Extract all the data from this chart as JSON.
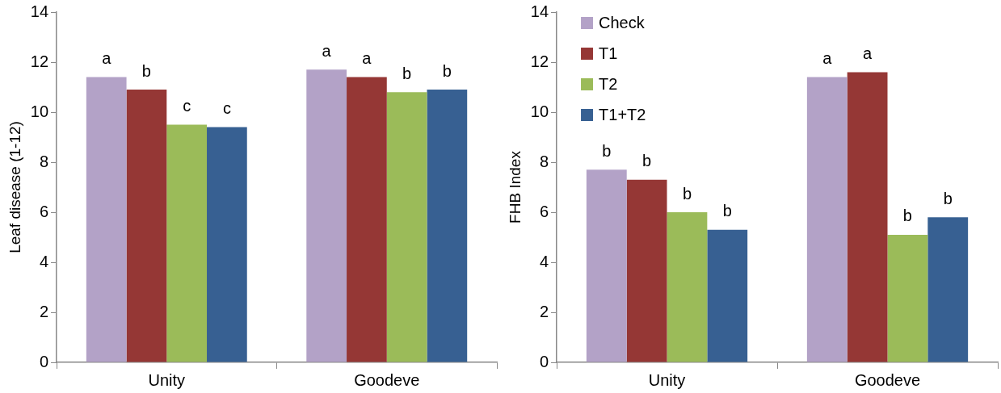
{
  "chart_data": [
    {
      "type": "bar",
      "ylabel": "Leaf disease (1-12)",
      "categories": [
        "Unity",
        "Goodeve"
      ],
      "ylim": [
        0,
        14
      ],
      "yticks": [
        0,
        2,
        4,
        6,
        8,
        10,
        12,
        14
      ],
      "grid": false,
      "legend": false,
      "series": [
        {
          "color": "#b3a2c7",
          "values": [
            11.4,
            11.7
          ],
          "value_labels": [
            "a",
            "a"
          ]
        },
        {
          "color": "#953735",
          "values": [
            10.9,
            11.4
          ],
          "value_labels": [
            "b",
            "a"
          ]
        },
        {
          "color": "#9bbb59",
          "values": [
            9.5,
            10.8
          ],
          "value_labels": [
            "c",
            "b"
          ]
        },
        {
          "color": "#376092",
          "values": [
            9.4,
            10.9
          ],
          "value_labels": [
            "c",
            "b"
          ]
        }
      ]
    },
    {
      "type": "bar",
      "ylabel": "FHB Index",
      "categories": [
        "Unity",
        "Goodeve"
      ],
      "ylim": [
        0,
        14
      ],
      "yticks": [
        0,
        2,
        4,
        6,
        8,
        10,
        12,
        14
      ],
      "grid": false,
      "legend": "top left",
      "series": [
        {
          "name": "Check",
          "color": "#b3a2c7",
          "values": [
            7.7,
            11.4
          ],
          "value_labels": [
            "b",
            "a"
          ]
        },
        {
          "name": "T1",
          "color": "#953735",
          "values": [
            7.3,
            11.6
          ],
          "value_labels": [
            "b",
            "a"
          ]
        },
        {
          "name": "T2",
          "color": "#9bbb59",
          "values": [
            6.0,
            5.1
          ],
          "value_labels": [
            "b",
            "b"
          ]
        },
        {
          "name": "T1+T2",
          "color": "#376092",
          "values": [
            5.3,
            5.8
          ],
          "value_labels": [
            "b",
            "b"
          ]
        }
      ]
    }
  ]
}
